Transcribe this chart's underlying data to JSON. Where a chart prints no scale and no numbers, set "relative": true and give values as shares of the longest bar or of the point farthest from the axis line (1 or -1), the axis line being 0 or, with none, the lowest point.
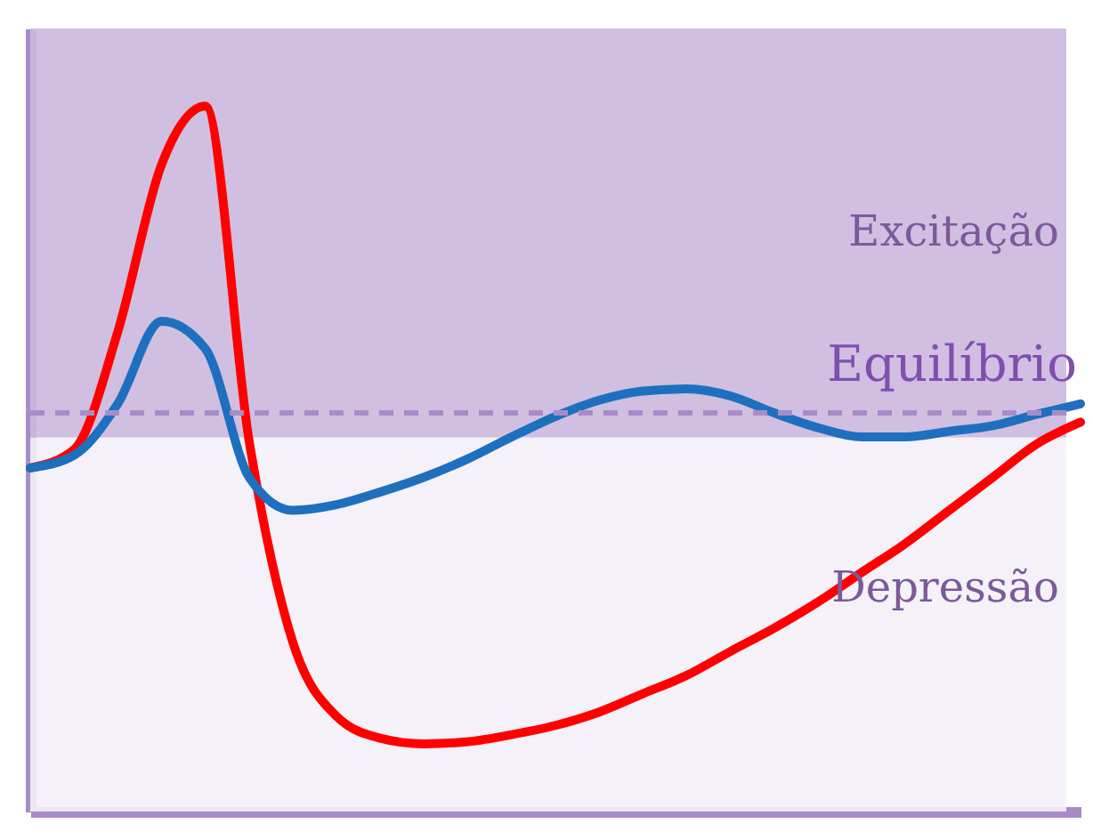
{
  "chart_data": {
    "type": "line",
    "relative": true,
    "categories": [
      null,
      null,
      null,
      null,
      null,
      null,
      null,
      null,
      null,
      null,
      null,
      null,
      null,
      null,
      null,
      null,
      null,
      null,
      null,
      null,
      null,
      null,
      null,
      null,
      null
    ],
    "series": [
      {
        "color": "#ff0000",
        "values": [
          0.487,
          0.513,
          0.68,
          0.917,
          1,
          0.526,
          0.24,
          0.135,
          0.104,
          0.096,
          0.099,
          0.109,
          0.122,
          0.141,
          0.167,
          0.193,
          0.227,
          0.26,
          0.297,
          0.339,
          0.38,
          0.427,
          0.474,
          0.521,
          0.552
        ]
      },
      {
        "color": "#1f6fbf",
        "values": [
          0.487,
          0.505,
          0.578,
          0.695,
          0.656,
          0.474,
          0.427,
          0.435,
          0.453,
          0.474,
          0.5,
          0.531,
          0.56,
          0.583,
          0.596,
          0.599,
          0.589,
          0.565,
          0.544,
          0.531,
          0.531,
          0.539,
          0.547,
          0.563,
          0.578
        ]
      }
    ],
    "bands": [
      {
        "axis": "y",
        "from": 0.53,
        "to": 1.11,
        "label": "Excitação",
        "color": "#cbb8de"
      },
      {
        "axis": "y",
        "from": 0,
        "to": 0.53,
        "label": "Depressão",
        "color": "#f4eff7"
      }
    ],
    "ref_lines": [
      {
        "axis": "y",
        "value": 0.565,
        "label": "Equilíbrio",
        "color": "#a88cc8",
        "line_style": "dashed"
      }
    ],
    "grid": false,
    "marker": "none",
    "line_style": "solid",
    "tick_labels": false
  }
}
